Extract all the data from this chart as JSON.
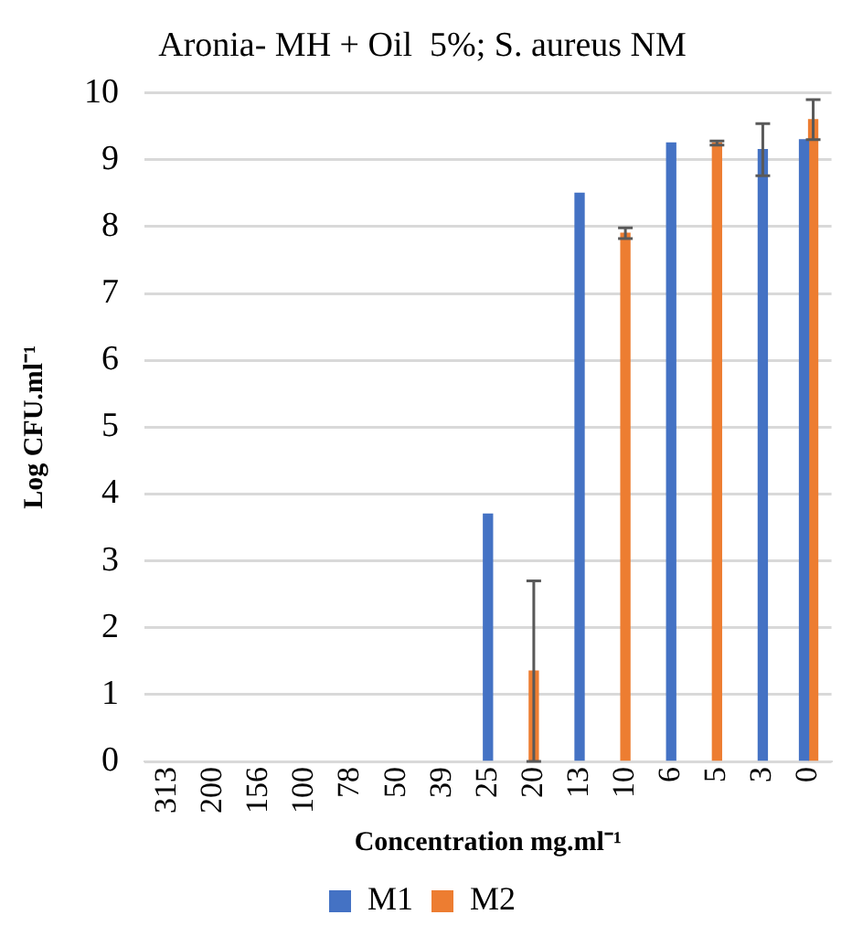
{
  "chart_data": {
    "type": "bar",
    "title": "Aronia- MH + Oil  5%; S. aureus NM",
    "xlabel": "Concentration mg.ml⁻¹",
    "ylabel": "Log CFU.ml⁻¹",
    "categories": [
      "313",
      "200",
      "156",
      "100",
      "78",
      "50",
      "39",
      "25",
      "20",
      "13",
      "10",
      "6",
      "5",
      "3",
      "0"
    ],
    "series": [
      {
        "name": "M1",
        "color": "#4472c4",
        "values": [
          null,
          null,
          null,
          null,
          null,
          null,
          null,
          3.7,
          null,
          8.5,
          null,
          9.25,
          null,
          9.15,
          9.3
        ],
        "errors": [
          null,
          null,
          null,
          null,
          null,
          null,
          null,
          null,
          null,
          null,
          null,
          null,
          null,
          0.39,
          null
        ]
      },
      {
        "name": "M2",
        "color": "#ed7d31",
        "values": [
          null,
          null,
          null,
          null,
          null,
          null,
          null,
          null,
          1.35,
          null,
          7.9,
          null,
          9.25,
          null,
          9.6
        ],
        "errors": [
          null,
          null,
          null,
          null,
          null,
          null,
          null,
          null,
          1.35,
          null,
          0.08,
          null,
          0.03,
          null,
          0.3
        ]
      }
    ],
    "ylim": [
      0,
      10
    ],
    "yticks": [
      0,
      1,
      2,
      3,
      4,
      5,
      6,
      7,
      8,
      9,
      10
    ],
    "grid": "y",
    "legend": "bottom"
  }
}
